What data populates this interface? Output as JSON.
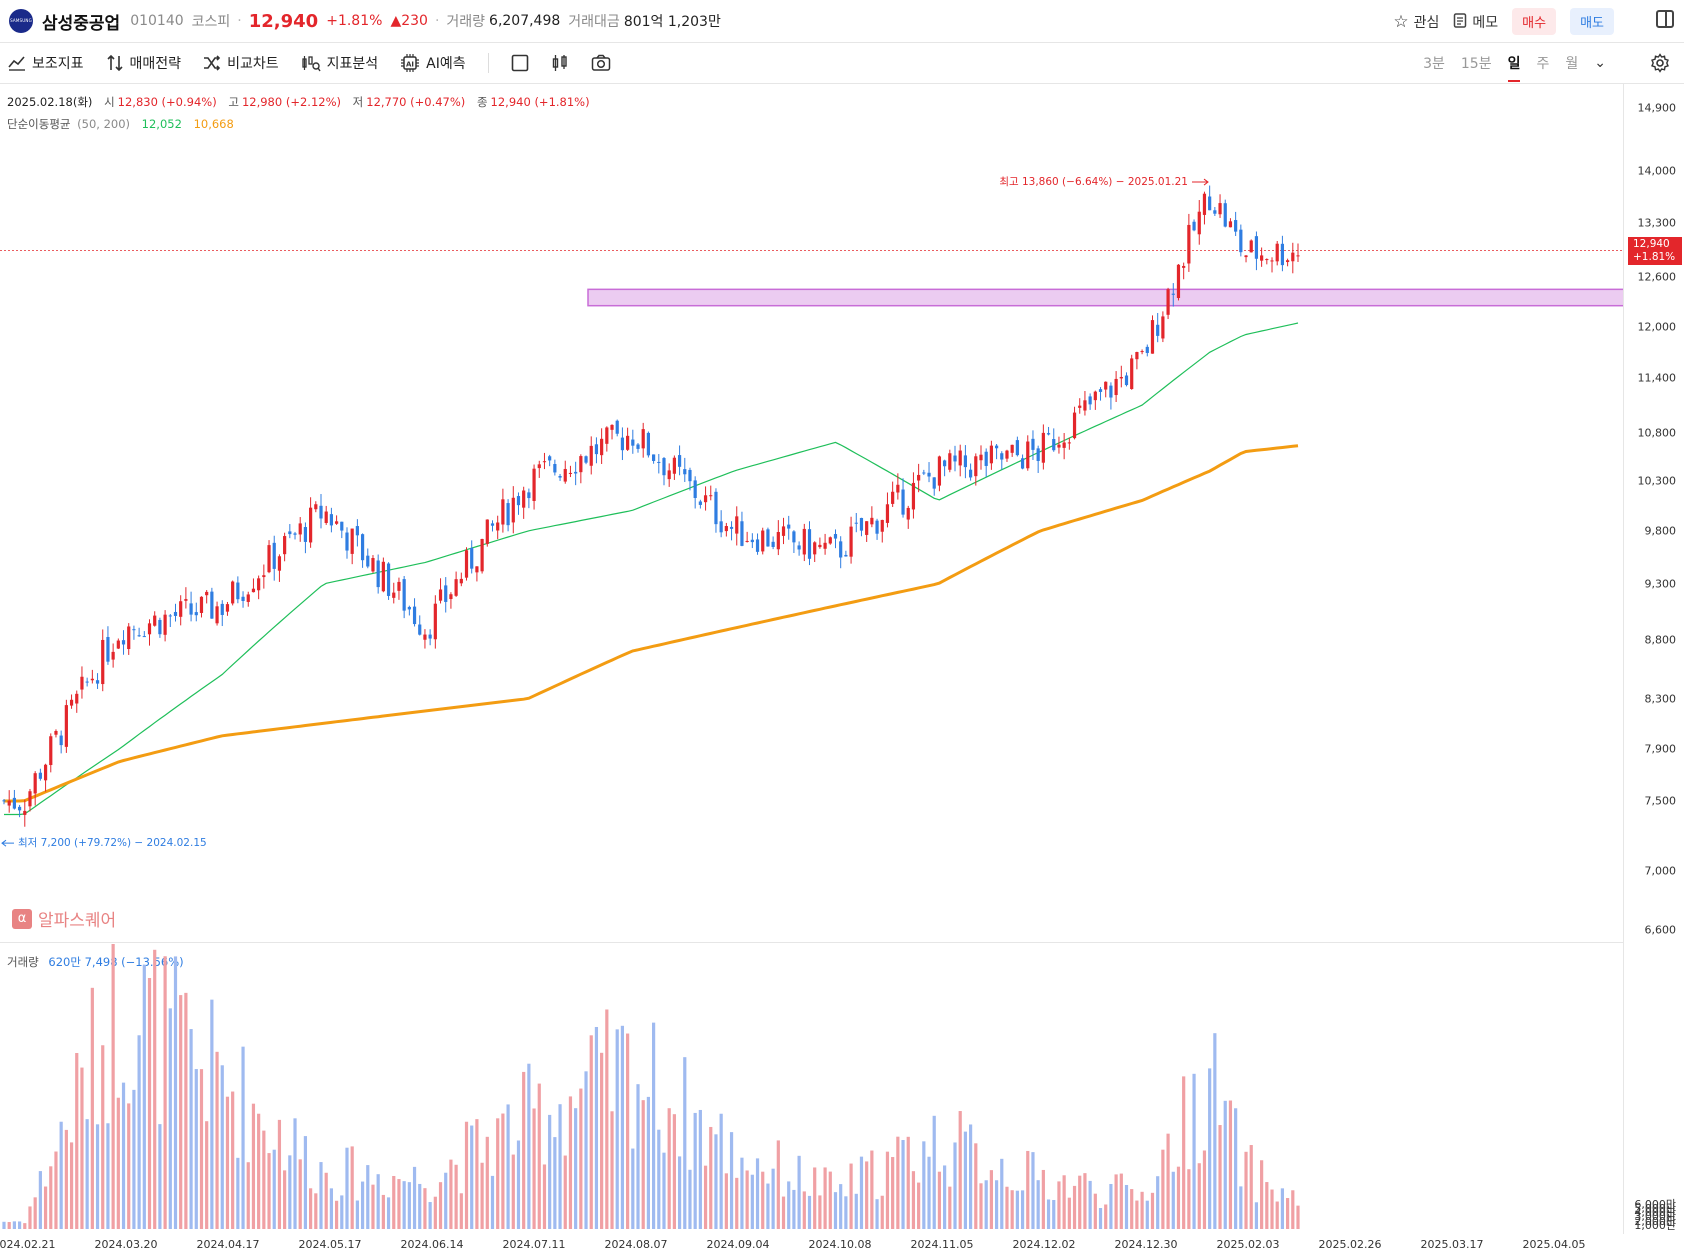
{
  "header": {
    "logo_text": "SAMSUNG",
    "name": "삼성중공업",
    "code": "010140",
    "market": "코스피",
    "price": "12,940",
    "change_pct": "+1.81%",
    "change_abs": "▲230",
    "volume_label": "거래량",
    "volume": "6,207,498",
    "amount_label": "거래대금",
    "amount": "801억 1,203만",
    "watch": "관심",
    "memo": "메모",
    "buy": "매수",
    "sell": "매도"
  },
  "toolbar": {
    "tools": [
      "보조지표",
      "매매전략",
      "비교차트",
      "지표분석",
      "AI예측"
    ],
    "periods": [
      "3분",
      "15분",
      "일",
      "주",
      "월"
    ],
    "active_period": "일"
  },
  "ohlc": {
    "date": "2025.02.18(화)",
    "open_label": "시",
    "open": "12,830 (+0.94%)",
    "high_label": "고",
    "high": "12,980 (+2.12%)",
    "low_label": "저",
    "low": "12,770 (+0.47%)",
    "close_label": "종",
    "close": "12,940 (+1.81%)"
  },
  "ma": {
    "label": "단순이동평균",
    "params": "(50, 200)",
    "ma50": "12,052",
    "ma200": "10,668",
    "ma50_color": "#1fbf5a",
    "ma200_color": "#f39c12"
  },
  "annotations": {
    "high": "최고 13,860 (−6.64%) − 2025.01.21",
    "low": "최저 7,200 (+79.72%) − 2024.02.15"
  },
  "watermark": "알파스퀘어",
  "volume_panel": {
    "label": "거래량",
    "value": "620만 7,498 (−13.56%)"
  },
  "price_axis": [
    "14,900",
    "14,000",
    "13,300",
    "12,600",
    "12,000",
    "11,400",
    "10,800",
    "10,300",
    "9,800",
    "9,300",
    "8,800",
    "8,300",
    "7,900",
    "7,500",
    "7,000",
    "6,600"
  ],
  "current_badge": {
    "price": "12,940",
    "pct": "+1.81%"
  },
  "volume_axis": [
    "6,000만",
    "5,000만",
    "4,000만",
    "3,000만",
    "2,000만",
    "1,000만"
  ],
  "date_axis": [
    "2024.02.21",
    "2024.03.20",
    "2024.04.17",
    "2024.05.17",
    "2024.06.14",
    "2024.07.11",
    "2024.08.07",
    "2024.09.04",
    "2024.10.08",
    "2024.11.05",
    "2024.12.02",
    "2024.12.30",
    "2025.02.03",
    "2025.02.26",
    "2025.03.17",
    "2025.04.05"
  ],
  "colors": {
    "up": "#e3262b",
    "down": "#2f7de1",
    "zone": "#c86dd7"
  },
  "chart_data": {
    "type": "candlestick",
    "title": "",
    "ylim": [
      6600,
      14900
    ],
    "price_scale": "log",
    "support_zone": [
      12250,
      12450
    ],
    "x": [
      "2024.02.21",
      "2024.03.20",
      "2024.04.17",
      "2024.05.17",
      "2024.06.14",
      "2024.07.11",
      "2024.08.07",
      "2024.09.04",
      "2024.10.08",
      "2024.11.05",
      "2024.12.02",
      "2024.12.30",
      "2025.01.21",
      "2025.02.03",
      "2025.02.18"
    ],
    "series": [
      {
        "name": "종가",
        "values": [
          7500,
          8900,
          9100,
          10000,
          8900,
          10300,
          10800,
          9800,
          9600,
          10400,
          10600,
          11600,
          13700,
          12900,
          12940
        ]
      },
      {
        "name": "50",
        "values": [
          7400,
          7900,
          8500,
          9300,
          9500,
          9800,
          10000,
          10400,
          10700,
          10100,
          10600,
          11100,
          11700,
          11900,
          12052
        ]
      },
      {
        "name": "200",
        "values": [
          7500,
          7800,
          8000,
          8100,
          8200,
          8300,
          8700,
          8900,
          9100,
          9300,
          9800,
          10100,
          10400,
          10600,
          10668
        ]
      }
    ],
    "volume_millions": [
      2,
      60,
      39,
      15,
      13,
      29,
      42,
      20,
      10,
      23,
      13,
      9,
      39,
      16,
      6.2
    ]
  }
}
